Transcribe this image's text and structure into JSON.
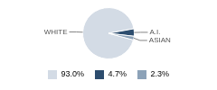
{
  "chart_data": {
    "type": "pie",
    "categories": [
      "WHITE",
      "A.I.",
      "ASIAN"
    ],
    "values": [
      93.0,
      4.7,
      2.3
    ],
    "value_labels": [
      "93.0%",
      "4.7%",
      "2.3%"
    ],
    "colors": [
      "#d3dbe5",
      "#2d4d6e",
      "#8ca2b8"
    ],
    "legend": "bottom"
  }
}
